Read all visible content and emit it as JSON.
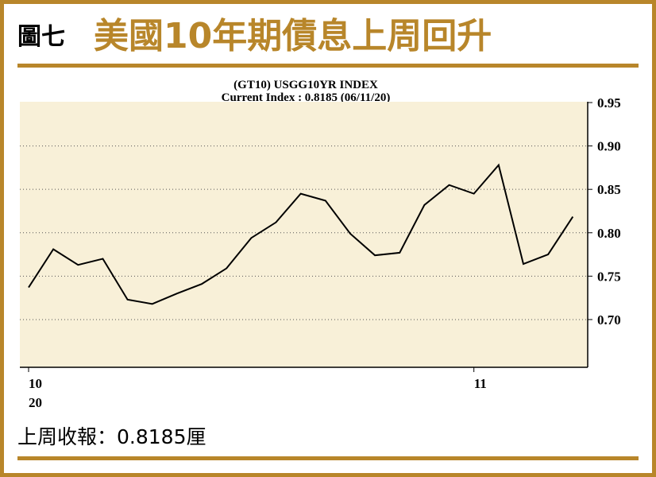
{
  "header": {
    "label": "圖七",
    "title": "美國10年期債息上周回升"
  },
  "chart_data": {
    "type": "line",
    "title": "(GT10) USGG10YR INDEX",
    "subtitle": "Current Index : 0.8185 (06/11/20)",
    "categories": [
      "10",
      null,
      null,
      null,
      null,
      null,
      null,
      null,
      null,
      null,
      null,
      null,
      null,
      null,
      null,
      null,
      null,
      null,
      "11",
      null,
      null,
      null,
      null
    ],
    "x_year_label": "20",
    "series": [
      {
        "name": "USGG10YR",
        "color": "#000000",
        "values": [
          0.737,
          0.781,
          0.763,
          0.77,
          0.723,
          0.718,
          0.73,
          0.741,
          0.759,
          0.794,
          0.812,
          0.845,
          0.837,
          0.799,
          0.774,
          0.777,
          0.832,
          0.855,
          0.845,
          0.878,
          0.764,
          0.775,
          0.8185
        ]
      }
    ],
    "ylim": [
      0.645,
      0.95
    ],
    "yticks": [
      0.95,
      {
        "value": 0.9,
        "label": "0.90"
      },
      0.85,
      {
        "value": 0.8,
        "label": "0.80"
      },
      0.75,
      {
        "value": 0.7,
        "label": "0.70"
      }
    ],
    "grid": true,
    "background": "#f8f0d8"
  },
  "footer": {
    "text": "上周收報：0.8185厘"
  }
}
